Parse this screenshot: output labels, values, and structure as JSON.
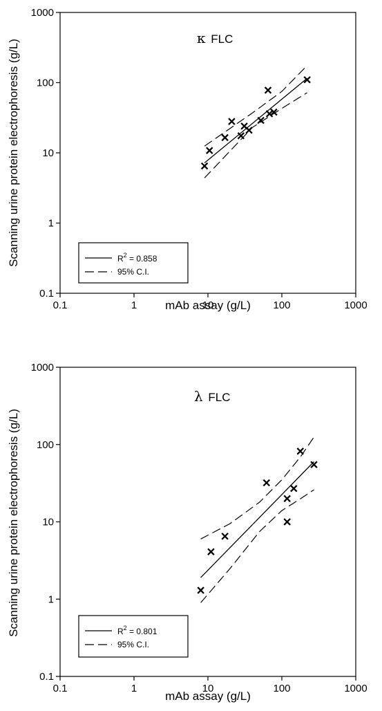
{
  "chart_data": [
    {
      "type": "scatter",
      "title_symbol": "κ",
      "title_text": "FLC",
      "xlabel": "mAb assay (g/L)",
      "ylabel": "Scanning urine protein electrophoresis (g/L)",
      "x_scale": "log",
      "y_scale": "log",
      "xlim": [
        0.1,
        1000
      ],
      "ylim": [
        0.1,
        1000
      ],
      "x_ticks": [
        "0.1",
        "1",
        "10",
        "100",
        "1000"
      ],
      "y_ticks": [
        "0.1",
        "1",
        "10",
        "100",
        "1000"
      ],
      "grid": false,
      "legend_position": "bottom-left",
      "legend": {
        "fit_label": "R",
        "fit_sup": "2",
        "fit_value": " = 0.858",
        "ci_label": "95% C.I."
      },
      "points": [
        {
          "x": 9,
          "y": 6.5
        },
        {
          "x": 10.5,
          "y": 10.8
        },
        {
          "x": 17,
          "y": 16.5
        },
        {
          "x": 21,
          "y": 28
        },
        {
          "x": 28,
          "y": 17.5
        },
        {
          "x": 31,
          "y": 24
        },
        {
          "x": 36,
          "y": 21
        },
        {
          "x": 52,
          "y": 29
        },
        {
          "x": 65,
          "y": 78
        },
        {
          "x": 68,
          "y": 36
        },
        {
          "x": 78,
          "y": 38
        },
        {
          "x": 220,
          "y": 110
        }
      ],
      "fit_line": [
        [
          9,
          7.2
        ],
        [
          220,
          115
        ]
      ],
      "ci_upper": [
        [
          9,
          12.5
        ],
        [
          40,
          37
        ],
        [
          100,
          75
        ],
        [
          220,
          175
        ]
      ],
      "ci_lower": [
        [
          9,
          4.4
        ],
        [
          40,
          23
        ],
        [
          100,
          43
        ],
        [
          220,
          72
        ]
      ]
    },
    {
      "type": "scatter",
      "title_symbol": "λ",
      "title_text": "FLC",
      "xlabel": "mAb assay (g/L)",
      "ylabel": "Scanning urine protein electrophoresis (g/L)",
      "x_scale": "log",
      "y_scale": "log",
      "xlim": [
        0.1,
        1000
      ],
      "ylim": [
        0.1,
        1000
      ],
      "x_ticks": [
        "0.1",
        "1",
        "10",
        "100",
        "1000"
      ],
      "y_ticks": [
        "0.1",
        "1",
        "10",
        "100",
        "1000"
      ],
      "grid": false,
      "legend_position": "bottom-left",
      "legend": {
        "fit_label": "R",
        "fit_sup": "2",
        "fit_value": " = 0.801",
        "ci_label": "95% C.I."
      },
      "points": [
        {
          "x": 8,
          "y": 1.3
        },
        {
          "x": 11,
          "y": 4.1
        },
        {
          "x": 17,
          "y": 6.5
        },
        {
          "x": 62,
          "y": 32
        },
        {
          "x": 118,
          "y": 20
        },
        {
          "x": 118,
          "y": 10
        },
        {
          "x": 145,
          "y": 27
        },
        {
          "x": 178,
          "y": 82
        },
        {
          "x": 272,
          "y": 55
        }
      ],
      "fit_line": [
        [
          8,
          1.9
        ],
        [
          272,
          60
        ]
      ],
      "ci_upper": [
        [
          8,
          6
        ],
        [
          20,
          9.5
        ],
        [
          50,
          18
        ],
        [
          100,
          35
        ],
        [
          180,
          70
        ],
        [
          272,
          125
        ]
      ],
      "ci_lower": [
        [
          8,
          0.9
        ],
        [
          20,
          2.5
        ],
        [
          50,
          7.5
        ],
        [
          100,
          14
        ],
        [
          180,
          20
        ],
        [
          272,
          26
        ]
      ]
    }
  ]
}
